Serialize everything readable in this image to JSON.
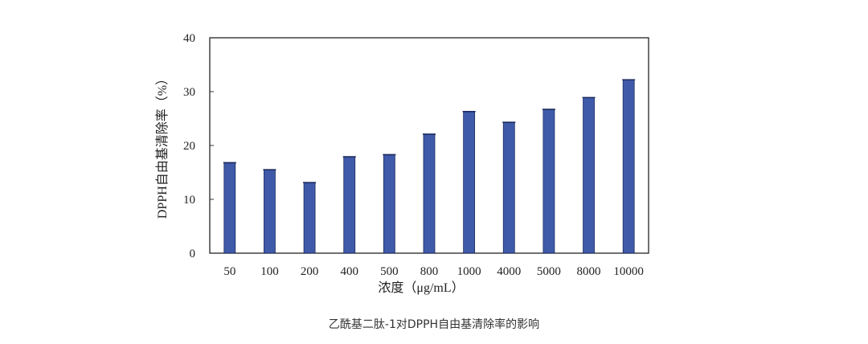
{
  "caption": "乙酰基二肽-1对DPPH自由基清除率的影响",
  "chart_data": {
    "type": "bar",
    "xlabel": "浓度（μg/mL）",
    "ylabel": "DPPH自由基清除率（%）",
    "ylim": [
      0,
      40
    ],
    "yticks": [
      0,
      10,
      20,
      30,
      40
    ],
    "categories": [
      "50",
      "100",
      "200",
      "400",
      "500",
      "800",
      "1000",
      "4000",
      "5000",
      "8000",
      "10000"
    ],
    "values": [
      16.8,
      15.5,
      13.1,
      17.9,
      18.3,
      22.1,
      26.3,
      24.3,
      26.7,
      28.9,
      32.2
    ],
    "bar_color": "#3f5aa8",
    "grid": false
  }
}
